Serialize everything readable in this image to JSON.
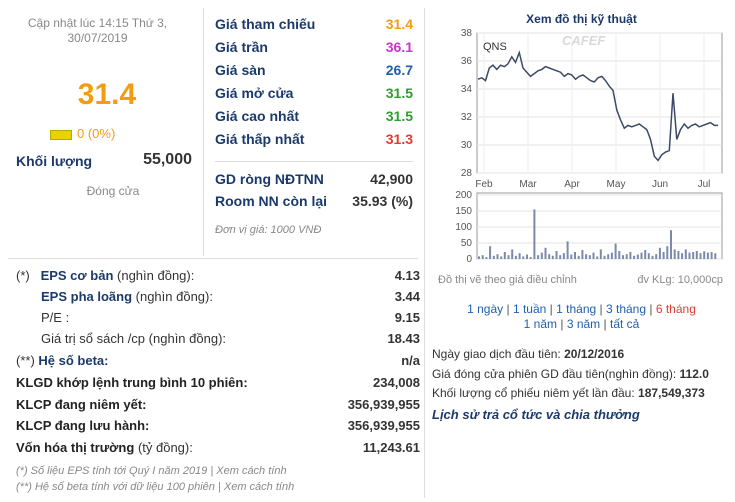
{
  "summary": {
    "updated_line1": "Cập nhật lúc 14:15 Thứ 3,",
    "updated_line2": "30/07/2019",
    "price": "31.4",
    "change": "0 (0%)",
    "volume_label": "Khối lượng",
    "volume_value": "55,000",
    "status": "Đóng cửa",
    "colors": {
      "price": "#f39c12",
      "up": "#2e9e2e",
      "ceiling": "#cc33cc",
      "floor": "#1f5fb0",
      "down": "#e03c31",
      "flat": "#f39c12"
    }
  },
  "prices": {
    "ref_label": "Giá tham chiếu",
    "ref_value": "31.4",
    "ceiling_label": "Giá trần",
    "ceiling_value": "36.1",
    "floor_label": "Giá sàn",
    "floor_value": "26.7",
    "open_label": "Giá mở cửa",
    "open_value": "31.5",
    "high_label": "Giá cao nhất",
    "high_value": "31.5",
    "low_label": "Giá thấp nhất",
    "low_value": "31.3",
    "net_foreign_label": "GD ròng NĐTNN",
    "net_foreign_value": "42,900",
    "room_label": "Room NN còn lại",
    "room_value": "35.93 (%)",
    "unit_note": "Đơn vị giá: 1000 VNĐ"
  },
  "fundamentals": {
    "eps_basic_marker": "(*)",
    "eps_basic_label": "EPS cơ bản",
    "eps_basic_unit": "(nghìn đồng):",
    "eps_basic_value": "4.13",
    "eps_diluted_label": "EPS pha loãng",
    "eps_diluted_unit": "(nghìn đồng):",
    "eps_diluted_value": "3.44",
    "pe_label": "P/E :",
    "pe_value": "9.15",
    "bvps_label": "Giá trị sổ sách /cp",
    "bvps_unit": "(nghìn đồng):",
    "bvps_value": "18.43",
    "beta_marker": "(**)",
    "beta_label": "Hệ số beta:",
    "beta_value": "n/a",
    "avg_vol_label": "KLGD khớp lệnh trung bình 10 phiên:",
    "avg_vol_value": "234,008",
    "listed_label": "KLCP đang niêm yết:",
    "listed_value": "356,939,955",
    "outstanding_label": "KLCP đang lưu hành:",
    "outstanding_value": "356,939,955",
    "mcap_label": "Vốn hóa thị trường",
    "mcap_unit": "(tỷ đồng):",
    "mcap_value": "11,243.61",
    "footnote1": "(*) Số liệu EPS tính tới Quý I năm 2019 | Xem cách tính",
    "footnote2": "(**) Hệ số beta tính với dữ liệu 100 phiên | Xem cách tính"
  },
  "chart_panel": {
    "title": "Xem đồ thị kỹ thuật",
    "ticker": "QNS",
    "watermark": "CAFEF",
    "note_left": "Đồ thị vẽ theo giá điều chỉnh",
    "note_right": "đv KLg: 10,000cp",
    "ranges": [
      "1 ngày",
      "1 tuần",
      "1 tháng",
      "3 tháng",
      "6 tháng",
      "1 năm",
      "3 năm",
      "tất cả"
    ],
    "separator": "|",
    "active_range_color": "#e03c31"
  },
  "chart_data": [
    {
      "type": "line",
      "title": "",
      "xlabel": "",
      "ylabel": "",
      "x_ticks": [
        "Feb",
        "Mar",
        "Apr",
        "May",
        "Jun",
        "Jul"
      ],
      "y_ticks": [
        "28",
        "30",
        "32",
        "34",
        "36",
        "38"
      ],
      "ylim": [
        28,
        38
      ],
      "grid": true,
      "series": [
        {
          "values": [
            34.7,
            34.8,
            34.6,
            35.5,
            35.7,
            35.4,
            35.7,
            35.6,
            35.8,
            36.3,
            35.9,
            36.6,
            35.5,
            35.2,
            34.9,
            35.1,
            35.3,
            35.4,
            35.6,
            35.5,
            35.4,
            35.3,
            35.2,
            34.9,
            35.1,
            35.0,
            34.7,
            34.9,
            35.0,
            34.8,
            34.6,
            34.5,
            34.8,
            34.9,
            34.6,
            34.2,
            33.9,
            32.5,
            31.8,
            31.2,
            31.4,
            31.3,
            31.4,
            31.5,
            31.3,
            31.1,
            30.4,
            29.2,
            28.9,
            29.3,
            29.5,
            29.6,
            33.7,
            30.4,
            31.1,
            31.5,
            31.2,
            31.4,
            31.5,
            31.3,
            31.4,
            31.5,
            31.6,
            31.4,
            31.4
          ]
        }
      ],
      "color": "#3b4a66"
    },
    {
      "type": "bar",
      "title": "",
      "y_ticks": [
        "0",
        "50",
        "100",
        "150",
        "200"
      ],
      "ylim": [
        0,
        200
      ],
      "grid": true,
      "series": [
        {
          "values": [
            8,
            12,
            6,
            40,
            10,
            15,
            8,
            22,
            12,
            30,
            10,
            18,
            8,
            14,
            6,
            155,
            12,
            20,
            35,
            15,
            10,
            25,
            12,
            18,
            55,
            14,
            22,
            10,
            28,
            15,
            12,
            20,
            8,
            30,
            10,
            15,
            20,
            48,
            25,
            12,
            15,
            22,
            10,
            14,
            20,
            28,
            18,
            10,
            15,
            35,
            22,
            40,
            90,
            30,
            25,
            18,
            30,
            20,
            22,
            25,
            18,
            24,
            20,
            22,
            18
          ]
        }
      ],
      "color": "#7b8aa8"
    }
  ],
  "listing": {
    "first_trade_label": "Ngày giao dịch đầu tiên:",
    "first_trade_value": "20/12/2016",
    "first_close_label": "Giá đóng cửa phiên GD đầu tiên(nghìn đồng):",
    "first_close_value": "112.0",
    "first_vol_label": "Khối lượng cổ phiếu niêm yết lần đầu:",
    "first_vol_value": "187,549,373",
    "dividend_link": "Lịch sử trả cổ tức và chia thưởng"
  }
}
